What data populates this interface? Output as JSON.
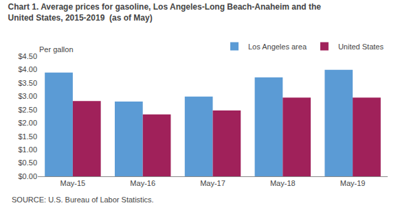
{
  "chart_data": {
    "type": "bar",
    "title": "Chart 1. Average prices for gasoline, Los Angeles-Long Beach-Anaheim and the",
    "subtitle": "United States, 2015-2019  (as of May)",
    "ylabel": "Per gallon",
    "annotations": [
      {
        "text": "SOURCE: U.S. Bureau of Labor Statistics."
      }
    ],
    "categories": [
      "May-15",
      "May-16",
      "May-17",
      "May-18",
      "May-19"
    ],
    "series": [
      {
        "name": "Los Angeles area",
        "color": "#5B9BD5",
        "values": [
          3.89,
          2.8,
          2.99,
          3.71,
          3.99
        ]
      },
      {
        "name": "United States",
        "color": "#A0215A",
        "values": [
          2.82,
          2.32,
          2.47,
          2.95,
          2.95
        ]
      }
    ],
    "ylim": [
      0,
      4.5
    ],
    "yticks": [
      {
        "value": 0.0,
        "label": "$0.00"
      },
      {
        "value": 0.5,
        "label": "$0.50"
      },
      {
        "value": 1.0,
        "label": "$1.00"
      },
      {
        "value": 1.5,
        "label": "$1.50"
      },
      {
        "value": 2.0,
        "label": "$2.00"
      },
      {
        "value": 2.5,
        "label": "$2.50"
      },
      {
        "value": 3.0,
        "label": "$3.00"
      },
      {
        "value": 3.5,
        "label": "$3.50"
      },
      {
        "value": 4.0,
        "label": "$4.00"
      },
      {
        "value": 4.5,
        "label": "$4.50"
      }
    ],
    "grid": false,
    "legend": "upper right"
  }
}
